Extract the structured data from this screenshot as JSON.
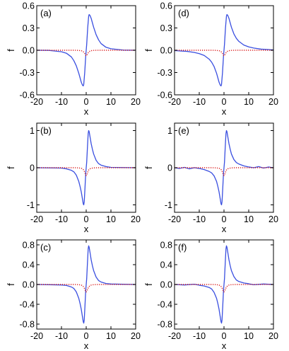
{
  "chart_data": [
    {
      "type": "line",
      "panel_label": "(a)",
      "xlabel": "x",
      "ylabel": "f",
      "xlim": [
        -20,
        20
      ],
      "ylim": [
        -0.6,
        0.6
      ],
      "xticks": [
        -20,
        -10,
        0,
        10,
        20
      ],
      "yticks": [
        -0.6,
        -0.3,
        0.0,
        0.3,
        0.6
      ],
      "ytick_labels": [
        "-0.6",
        "-0.3",
        "0.0",
        "0.3",
        "0.6"
      ],
      "series": [
        {
          "color": "#3a4fe0",
          "style": "solid",
          "x": [
            -20,
            -15,
            -10,
            -8,
            -6,
            -5,
            -4,
            -3,
            -2.5,
            -2,
            -1.5,
            -1.2,
            -1,
            -0.6,
            -0.2,
            0,
            0.2,
            0.6,
            1,
            1.2,
            1.5,
            2,
            2.5,
            3,
            4,
            5,
            6,
            8,
            10,
            15,
            20
          ],
          "y": [
            0,
            -0.002,
            -0.02,
            -0.04,
            -0.09,
            -0.14,
            -0.21,
            -0.31,
            -0.37,
            -0.43,
            -0.47,
            -0.48,
            -0.46,
            -0.3,
            -0.08,
            0,
            0.08,
            0.3,
            0.46,
            0.48,
            0.47,
            0.43,
            0.37,
            0.31,
            0.21,
            0.14,
            0.09,
            0.04,
            0.02,
            0.002,
            0
          ]
        },
        {
          "color": "#d81a1a",
          "style": "dotted",
          "x": [
            -20,
            -5,
            -3,
            -2,
            -1.5,
            -1,
            -0.6,
            -0.3,
            0,
            0.3,
            0.6,
            1,
            1.5,
            2,
            3,
            5,
            20
          ],
          "y": [
            0,
            0,
            -0.002,
            -0.006,
            -0.012,
            -0.025,
            -0.045,
            -0.065,
            -0.075,
            -0.065,
            -0.045,
            -0.025,
            -0.012,
            -0.006,
            -0.002,
            0,
            0
          ]
        }
      ]
    },
    {
      "type": "line",
      "panel_label": "(d)",
      "xlabel": "x",
      "ylabel": "f",
      "xlim": [
        -20,
        20
      ],
      "ylim": [
        -0.6,
        0.6
      ],
      "xticks": [
        -20,
        -10,
        0,
        10,
        20
      ],
      "yticks": [
        -0.6,
        -0.3,
        0.0,
        0.3,
        0.6
      ],
      "ytick_labels": [
        "-0.6",
        "-0.3",
        "0.0",
        "0.3",
        "0.6"
      ],
      "series": [
        {
          "color": "#3a4fe0",
          "style": "solid",
          "x": [
            -20,
            -15,
            -12,
            -10,
            -8,
            -6,
            -5,
            -4,
            -3,
            -2.5,
            -2,
            -1.5,
            -1.2,
            -1,
            -0.6,
            -0.2,
            0,
            0.2,
            0.6,
            1,
            1.2,
            1.5,
            2,
            2.5,
            3,
            4,
            5,
            6,
            8,
            10,
            12,
            15,
            20
          ],
          "y": [
            -0.005,
            -0.015,
            -0.03,
            -0.045,
            -0.07,
            -0.12,
            -0.16,
            -0.22,
            -0.31,
            -0.37,
            -0.43,
            -0.47,
            -0.48,
            -0.46,
            -0.3,
            -0.08,
            0,
            0.08,
            0.3,
            0.46,
            0.48,
            0.47,
            0.43,
            0.37,
            0.31,
            0.22,
            0.16,
            0.12,
            0.07,
            0.045,
            0.03,
            0.015,
            0.005
          ]
        },
        {
          "color": "#d81a1a",
          "style": "dotted",
          "x": [
            -20,
            -5,
            -3,
            -2,
            -1.5,
            -1,
            -0.6,
            -0.3,
            0,
            0.3,
            0.6,
            1,
            1.5,
            2,
            3,
            5,
            20
          ],
          "y": [
            0,
            0,
            -0.002,
            -0.006,
            -0.012,
            -0.025,
            -0.045,
            -0.065,
            -0.075,
            -0.065,
            -0.045,
            -0.025,
            -0.012,
            -0.006,
            -0.002,
            0,
            0
          ]
        }
      ]
    },
    {
      "type": "line",
      "panel_label": "(b)",
      "xlabel": "x",
      "ylabel": "f",
      "xlim": [
        -20,
        20
      ],
      "ylim": [
        -1.2,
        1.2
      ],
      "xticks": [
        -20,
        -10,
        0,
        10,
        20
      ],
      "yticks": [
        -1,
        0,
        1
      ],
      "ytick_labels": [
        "-1",
        "0",
        "1"
      ],
      "series": [
        {
          "color": "#3a4fe0",
          "style": "solid",
          "x": [
            -20,
            -10,
            -8,
            -6,
            -5,
            -4,
            -3,
            -2.5,
            -2,
            -1.5,
            -1.2,
            -1,
            -0.8,
            -0.5,
            -0.2,
            0,
            0.2,
            0.5,
            0.8,
            1,
            1.2,
            1.5,
            2,
            2.5,
            3,
            4,
            5,
            6,
            8,
            10,
            20
          ],
          "y": [
            0,
            -0.01,
            -0.03,
            -0.07,
            -0.11,
            -0.2,
            -0.37,
            -0.5,
            -0.65,
            -0.85,
            -0.97,
            -1.0,
            -0.92,
            -0.55,
            -0.15,
            0,
            0.15,
            0.55,
            0.92,
            1.0,
            0.97,
            0.85,
            0.65,
            0.5,
            0.37,
            0.2,
            0.11,
            0.07,
            0.03,
            0.01,
            0
          ]
        },
        {
          "color": "#d81a1a",
          "style": "dotted",
          "x": [
            -20,
            -5,
            -3,
            -2,
            -1.5,
            -1,
            -0.6,
            -0.3,
            0,
            0.3,
            0.6,
            1,
            1.5,
            2,
            3,
            5,
            20
          ],
          "y": [
            0,
            0,
            -0.005,
            -0.015,
            -0.03,
            -0.06,
            -0.12,
            -0.18,
            -0.21,
            -0.18,
            -0.12,
            -0.06,
            -0.03,
            -0.015,
            -0.005,
            0,
            0
          ]
        }
      ]
    },
    {
      "type": "line",
      "panel_label": "(e)",
      "xlabel": "x",
      "ylabel": "f",
      "xlim": [
        -20,
        20
      ],
      "ylim": [
        -1.2,
        1.2
      ],
      "xticks": [
        -20,
        -10,
        0,
        10,
        20
      ],
      "yticks": [
        -1,
        0,
        1
      ],
      "ytick_labels": [
        "-1",
        "0",
        "1"
      ],
      "series": [
        {
          "color": "#3a4fe0",
          "style": "solid",
          "x": [
            -20,
            -18,
            -16,
            -14,
            -12,
            -10,
            -8,
            -6,
            -5,
            -4,
            -3,
            -2.5,
            -2,
            -1.5,
            -1.2,
            -1,
            -0.8,
            -0.5,
            -0.2,
            0,
            0.2,
            0.5,
            0.8,
            1,
            1.2,
            1.5,
            2,
            2.5,
            3,
            4,
            5,
            6,
            8,
            10,
            12,
            14,
            16,
            18,
            20
          ],
          "y": [
            0,
            -0.02,
            0.01,
            -0.03,
            0.0,
            -0.02,
            -0.05,
            -0.1,
            -0.14,
            -0.22,
            -0.37,
            -0.5,
            -0.65,
            -0.85,
            -0.97,
            -1.0,
            -0.92,
            -0.55,
            -0.15,
            0,
            0.15,
            0.55,
            0.92,
            1.0,
            0.97,
            0.85,
            0.65,
            0.5,
            0.37,
            0.22,
            0.14,
            0.1,
            0.05,
            0.02,
            0.0,
            0.03,
            -0.01,
            0.02,
            0
          ]
        },
        {
          "color": "#d81a1a",
          "style": "dotted",
          "x": [
            -20,
            -5,
            -3,
            -2,
            -1.5,
            -1,
            -0.6,
            -0.3,
            0,
            0.3,
            0.6,
            1,
            1.5,
            2,
            3,
            5,
            20
          ],
          "y": [
            0,
            0,
            -0.005,
            -0.015,
            -0.03,
            -0.06,
            -0.12,
            -0.18,
            -0.21,
            -0.18,
            -0.12,
            -0.06,
            -0.03,
            -0.015,
            -0.005,
            0,
            0
          ]
        }
      ]
    },
    {
      "type": "line",
      "panel_label": "(c)",
      "xlabel": "x",
      "ylabel": "f",
      "xlim": [
        -20,
        20
      ],
      "ylim": [
        -0.9,
        0.9
      ],
      "xticks": [
        -20,
        -10,
        0,
        10,
        20
      ],
      "yticks": [
        -0.8,
        -0.4,
        0.0,
        0.4,
        0.8
      ],
      "ytick_labels": [
        "-0.8",
        "-0.4",
        "0.0",
        "0.4",
        "0.8"
      ],
      "series": [
        {
          "color": "#3a4fe0",
          "style": "solid",
          "x": [
            -20,
            -10,
            -8,
            -6,
            -5,
            -4,
            -3,
            -2.5,
            -2,
            -1.5,
            -1.2,
            -1,
            -0.8,
            -0.5,
            -0.2,
            0,
            0.2,
            0.5,
            0.8,
            1,
            1.2,
            1.5,
            2,
            2.5,
            3,
            4,
            5,
            6,
            8,
            10,
            20
          ],
          "y": [
            0,
            -0.01,
            -0.02,
            -0.05,
            -0.08,
            -0.15,
            -0.28,
            -0.38,
            -0.5,
            -0.66,
            -0.75,
            -0.78,
            -0.72,
            -0.43,
            -0.12,
            0,
            0.12,
            0.43,
            0.72,
            0.78,
            0.75,
            0.66,
            0.5,
            0.38,
            0.28,
            0.15,
            0.08,
            0.05,
            0.02,
            0.01,
            0
          ]
        },
        {
          "color": "#d81a1a",
          "style": "dotted",
          "x": [
            -20,
            -5,
            -3,
            -2,
            -1.5,
            -1,
            -0.6,
            -0.3,
            0,
            0.3,
            0.6,
            1,
            1.5,
            2,
            3,
            5,
            20
          ],
          "y": [
            0,
            0,
            -0.004,
            -0.012,
            -0.025,
            -0.05,
            -0.09,
            -0.13,
            -0.15,
            -0.13,
            -0.09,
            -0.05,
            -0.025,
            -0.012,
            -0.004,
            0,
            0
          ]
        }
      ]
    },
    {
      "type": "line",
      "panel_label": "(f)",
      "xlabel": "x",
      "ylabel": "f",
      "xlim": [
        -20,
        20
      ],
      "ylim": [
        -0.9,
        0.9
      ],
      "xticks": [
        -20,
        -10,
        0,
        10,
        20
      ],
      "yticks": [
        -0.8,
        -0.4,
        0.0,
        0.4,
        0.8
      ],
      "ytick_labels": [
        "-0.8",
        "-0.4",
        "0.0",
        "0.4",
        "0.8"
      ],
      "series": [
        {
          "color": "#3a4fe0",
          "style": "solid",
          "x": [
            -20,
            -16,
            -12,
            -10,
            -8,
            -6,
            -5,
            -4,
            -3,
            -2.5,
            -2,
            -1.5,
            -1.2,
            -1,
            -0.8,
            -0.5,
            -0.2,
            0,
            0.2,
            0.5,
            0.8,
            1,
            1.2,
            1.5,
            2,
            2.5,
            3,
            4,
            5,
            6,
            8,
            10,
            12,
            16,
            20
          ],
          "y": [
            0,
            -0.01,
            0.005,
            -0.015,
            -0.03,
            -0.06,
            -0.09,
            -0.16,
            -0.28,
            -0.38,
            -0.5,
            -0.66,
            -0.75,
            -0.78,
            -0.72,
            -0.43,
            -0.12,
            0,
            0.12,
            0.43,
            0.72,
            0.78,
            0.75,
            0.66,
            0.5,
            0.38,
            0.28,
            0.16,
            0.09,
            0.06,
            0.03,
            0.015,
            -0.005,
            0.01,
            0
          ]
        },
        {
          "color": "#d81a1a",
          "style": "dotted",
          "x": [
            -20,
            -5,
            -3,
            -2,
            -1.5,
            -1,
            -0.6,
            -0.3,
            0,
            0.3,
            0.6,
            1,
            1.5,
            2,
            3,
            5,
            20
          ],
          "y": [
            0,
            0,
            -0.004,
            -0.012,
            -0.025,
            -0.05,
            -0.09,
            -0.13,
            -0.15,
            -0.13,
            -0.09,
            -0.05,
            -0.025,
            -0.012,
            -0.004,
            0,
            0
          ]
        }
      ]
    }
  ]
}
